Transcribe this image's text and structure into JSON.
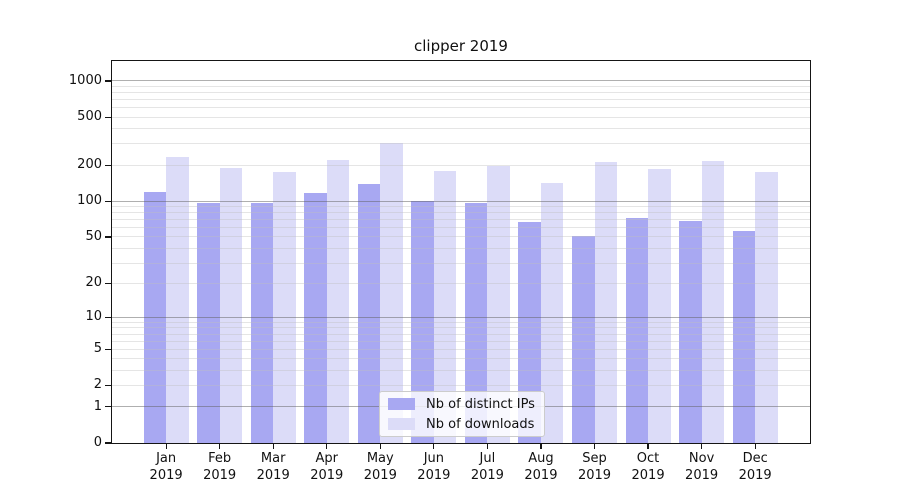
{
  "chart_data": {
    "type": "bar",
    "title": "clipper 2019",
    "categories": [
      "Jan 2019",
      "Feb 2019",
      "Mar 2019",
      "Apr 2019",
      "May 2019",
      "Jun 2019",
      "Jul 2019",
      "Aug 2019",
      "Sep 2019",
      "Oct 2019",
      "Nov 2019",
      "Dec 2019"
    ],
    "series": [
      {
        "name": "Nb of distinct IPs",
        "color": "#a8a8f2",
        "values": [
          119,
          97,
          96,
          116,
          140,
          100,
          97,
          67,
          51,
          72,
          68,
          56
        ]
      },
      {
        "name": "Nb of downloads",
        "color": "#dcdcf8",
        "values": [
          235,
          188,
          175,
          222,
          305,
          180,
          196,
          142,
          212,
          186,
          216,
          176
        ]
      }
    ],
    "xlabel": "",
    "ylabel": "",
    "yscale": "log1p",
    "yticks": [
      0,
      1,
      2,
      5,
      10,
      20,
      50,
      100,
      200,
      500,
      1000
    ],
    "minor_gridlines": [
      3,
      4,
      6,
      7,
      8,
      9,
      30,
      40,
      60,
      70,
      80,
      90,
      300,
      400,
      600,
      700,
      800,
      900
    ],
    "ylim": [
      0,
      1450
    ],
    "grid": "on",
    "legend_position": "lower center"
  }
}
